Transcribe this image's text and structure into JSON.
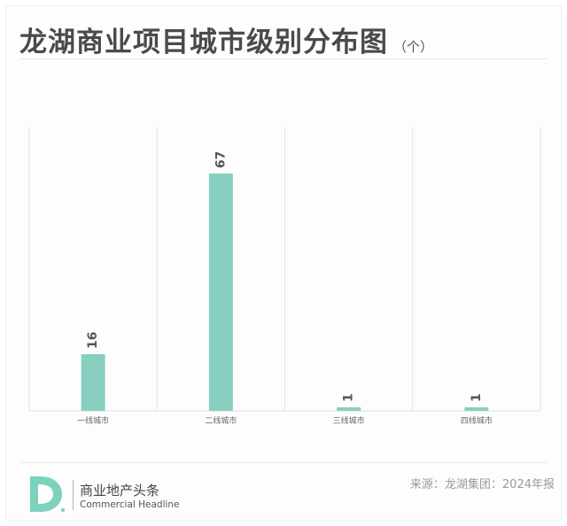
{
  "header": {
    "title": "龙湖商业项目城市级别分布图",
    "unit": "（个）"
  },
  "chart_data": {
    "type": "bar",
    "categories": [
      "一线城市",
      "二线城市",
      "三线城市",
      "四线城市"
    ],
    "values": [
      16,
      67,
      1,
      1
    ],
    "ylim": [
      0,
      67
    ],
    "grid": "vertical separators between categories",
    "bar_color": "#88cfc0"
  },
  "footer": {
    "brand_cn": "商业地产头条",
    "brand_en": "Commercial Headline",
    "source": "来源：龙湖集团：2024年报",
    "logo_color": "#7fd1bf"
  }
}
